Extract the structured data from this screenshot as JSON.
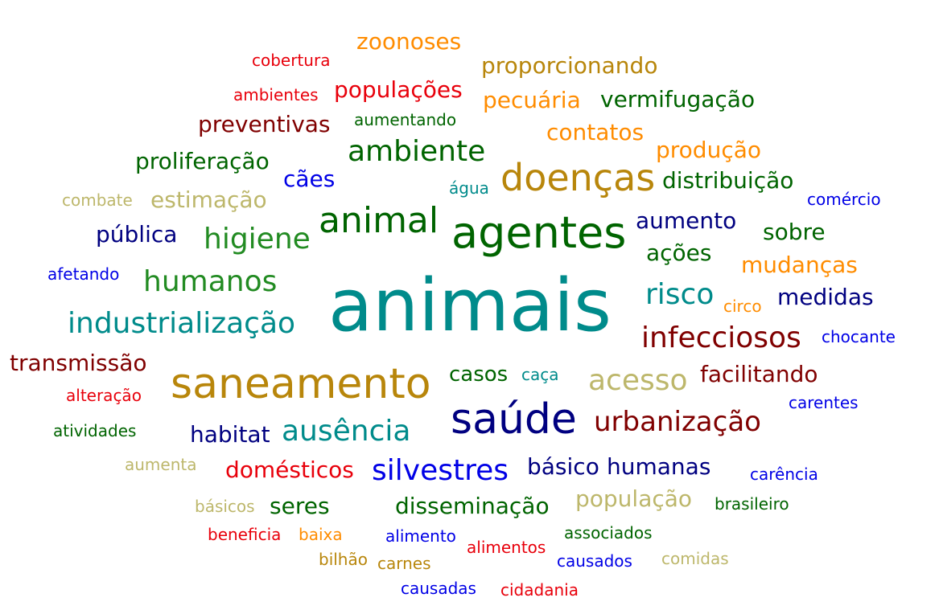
{
  "palette": {
    "teal": "#008B8B",
    "green": "#006400",
    "brightgreen": "#228B22",
    "gold": "#B8860B",
    "orange": "#FF8C00",
    "red": "#E8000B",
    "maroon": "#800000",
    "navy": "#000080",
    "blue": "#0000E6",
    "khaki": "#BDB76B"
  },
  "words": [
    {
      "text": "animais",
      "color": "teal"
    },
    {
      "text": "agentes",
      "color": "green"
    },
    {
      "text": "saneamento",
      "color": "gold"
    },
    {
      "text": "saúde",
      "color": "navy"
    },
    {
      "text": "doenças",
      "color": "gold"
    },
    {
      "text": "animal",
      "color": "green"
    },
    {
      "text": "silvestres",
      "color": "blue"
    },
    {
      "text": "ambiente",
      "color": "green"
    },
    {
      "text": "infecciosos",
      "color": "maroon"
    },
    {
      "text": "acesso",
      "color": "khaki"
    },
    {
      "text": "urbanização",
      "color": "maroon"
    },
    {
      "text": "industrialização",
      "color": "teal"
    },
    {
      "text": "higiene",
      "color": "brightgreen"
    },
    {
      "text": "humanos",
      "color": "brightgreen"
    },
    {
      "text": "ausência",
      "color": "teal"
    },
    {
      "text": "risco",
      "color": "teal"
    },
    {
      "text": "disseminação",
      "color": "green"
    },
    {
      "text": "domésticos",
      "color": "red"
    },
    {
      "text": "humanas",
      "color": "navy"
    },
    {
      "text": "básico",
      "color": "navy"
    },
    {
      "text": "habitat",
      "color": "navy"
    },
    {
      "text": "população",
      "color": "khaki"
    },
    {
      "text": "facilitando",
      "color": "maroon"
    },
    {
      "text": "proporcionando",
      "color": "gold"
    },
    {
      "text": "populações",
      "color": "red"
    },
    {
      "text": "zoonoses",
      "color": "orange"
    },
    {
      "text": "pecuária",
      "color": "orange"
    },
    {
      "text": "vermifugação",
      "color": "green"
    },
    {
      "text": "preventivas",
      "color": "maroon"
    },
    {
      "text": "contatos",
      "color": "orange"
    },
    {
      "text": "produção",
      "color": "orange"
    },
    {
      "text": "proliferação",
      "color": "green"
    },
    {
      "text": "distribuição",
      "color": "green"
    },
    {
      "text": "estimação",
      "color": "khaki"
    },
    {
      "text": "transmissão",
      "color": "maroon"
    },
    {
      "text": "mudanças",
      "color": "orange"
    },
    {
      "text": "medidas",
      "color": "navy"
    },
    {
      "text": "aumento",
      "color": "navy"
    },
    {
      "text": "pública",
      "color": "navy"
    },
    {
      "text": "sobre",
      "color": "green"
    },
    {
      "text": "ações",
      "color": "green"
    },
    {
      "text": "casos",
      "color": "green"
    },
    {
      "text": "seres",
      "color": "green"
    },
    {
      "text": "cães",
      "color": "blue"
    },
    {
      "text": "cobertura",
      "color": "red"
    },
    {
      "text": "ambientes",
      "color": "red"
    },
    {
      "text": "aumentando",
      "color": "green"
    },
    {
      "text": "combate",
      "color": "khaki"
    },
    {
      "text": "água",
      "color": "teal"
    },
    {
      "text": "comércio",
      "color": "blue"
    },
    {
      "text": "afetando",
      "color": "blue"
    },
    {
      "text": "circo",
      "color": "orange"
    },
    {
      "text": "chocante",
      "color": "blue"
    },
    {
      "text": "caça",
      "color": "teal"
    },
    {
      "text": "alteração",
      "color": "red"
    },
    {
      "text": "carentes",
      "color": "blue"
    },
    {
      "text": "atividades",
      "color": "green"
    },
    {
      "text": "aumenta",
      "color": "khaki"
    },
    {
      "text": "carência",
      "color": "blue"
    },
    {
      "text": "básicos",
      "color": "khaki"
    },
    {
      "text": "brasileiro",
      "color": "green"
    },
    {
      "text": "beneficia",
      "color": "red"
    },
    {
      "text": "baixa",
      "color": "orange"
    },
    {
      "text": "alimento",
      "color": "blue"
    },
    {
      "text": "associados",
      "color": "green"
    },
    {
      "text": "alimentos",
      "color": "red"
    },
    {
      "text": "bilhão",
      "color": "gold"
    },
    {
      "text": "carnes",
      "color": "gold"
    },
    {
      "text": "causados",
      "color": "blue"
    },
    {
      "text": "comidas",
      "color": "khaki"
    },
    {
      "text": "causadas",
      "color": "blue"
    },
    {
      "text": "cidadania",
      "color": "red"
    }
  ]
}
